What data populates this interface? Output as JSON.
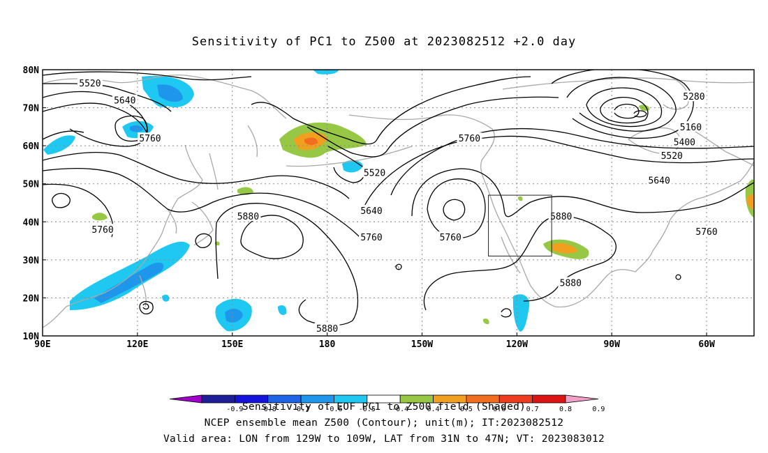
{
  "title": "Sensitivity of PC1 to Z500 at 2023082512 +2.0 day",
  "map": {
    "projection": "cylindrical",
    "lon_range": [
      "90E",
      "45W"
    ],
    "lat_range": [
      "10N",
      "80N"
    ],
    "lat_labels": [
      "80N",
      "70N",
      "60N",
      "50N",
      "40N",
      "30N",
      "20N",
      "10N"
    ],
    "lon_labels": [
      "90E",
      "120E",
      "150E",
      "180",
      "150W",
      "120W",
      "90W",
      "60W"
    ],
    "grid": "dotted",
    "contour_labels": [
      {
        "text": "5520",
        "lon": 105,
        "lat": 76.5
      },
      {
        "text": "5640",
        "lon": 116,
        "lat": 72
      },
      {
        "text": "5760",
        "lon": 124,
        "lat": 62
      },
      {
        "text": "5520",
        "lon": 195,
        "lat": 53
      },
      {
        "text": "5640",
        "lon": 194,
        "lat": 43
      },
      {
        "text": "5760",
        "lon": 194,
        "lat": 36
      },
      {
        "text": "5880",
        "lon": 155,
        "lat": 41.5
      },
      {
        "text": "5760",
        "lon": 109,
        "lat": 38
      },
      {
        "text": "5880",
        "lon": 180,
        "lat": 12
      },
      {
        "text": "5760",
        "lon": 225,
        "lat": 62
      },
      {
        "text": "5760",
        "lon": 219,
        "lat": 36
      },
      {
        "text": "5880",
        "lon": 254,
        "lat": 41.5
      },
      {
        "text": "5880",
        "lon": 257,
        "lat": 24
      },
      {
        "text": "5280",
        "lon": 296,
        "lat": 73
      },
      {
        "text": "5160",
        "lon": 295,
        "lat": 65
      },
      {
        "text": "5400",
        "lon": 293,
        "lat": 61
      },
      {
        "text": "5520",
        "lon": 289,
        "lat": 57.5
      },
      {
        "text": "5640",
        "lon": 285,
        "lat": 51
      },
      {
        "text": "5760",
        "lon": 300,
        "lat": 37.5
      }
    ],
    "valid_box": {
      "lon_west": "129W",
      "lon_east": "109W",
      "lat_south": "31N",
      "lat_north": "47N"
    }
  },
  "colorbar": {
    "ticks": [
      "-0.9",
      "-0.8",
      "-0.7",
      "-0.6",
      "-0.5",
      "-0.4",
      "0.4",
      "0.5",
      "0.6",
      "0.7",
      "0.8",
      "0.9"
    ],
    "colors": [
      "#a000c8",
      "#1e1e96",
      "#1414dc",
      "#1e64e6",
      "#1e96eb",
      "#1ec8f0",
      "#ffffff",
      "#96c846",
      "#f0a01e",
      "#f06e1e",
      "#f03c1e",
      "#dc1414",
      "#f0a0c8"
    ]
  },
  "footer": {
    "line1": "Sensitivity of EOF PC1 to Z500 field (Shaded)",
    "line2": "NCEP ensemble mean Z500 (Contour); unit(m); IT:2023082512",
    "line3": "Valid area: LON from 129W to 109W, LAT from 31N to 47N; VT: 2023083012"
  }
}
